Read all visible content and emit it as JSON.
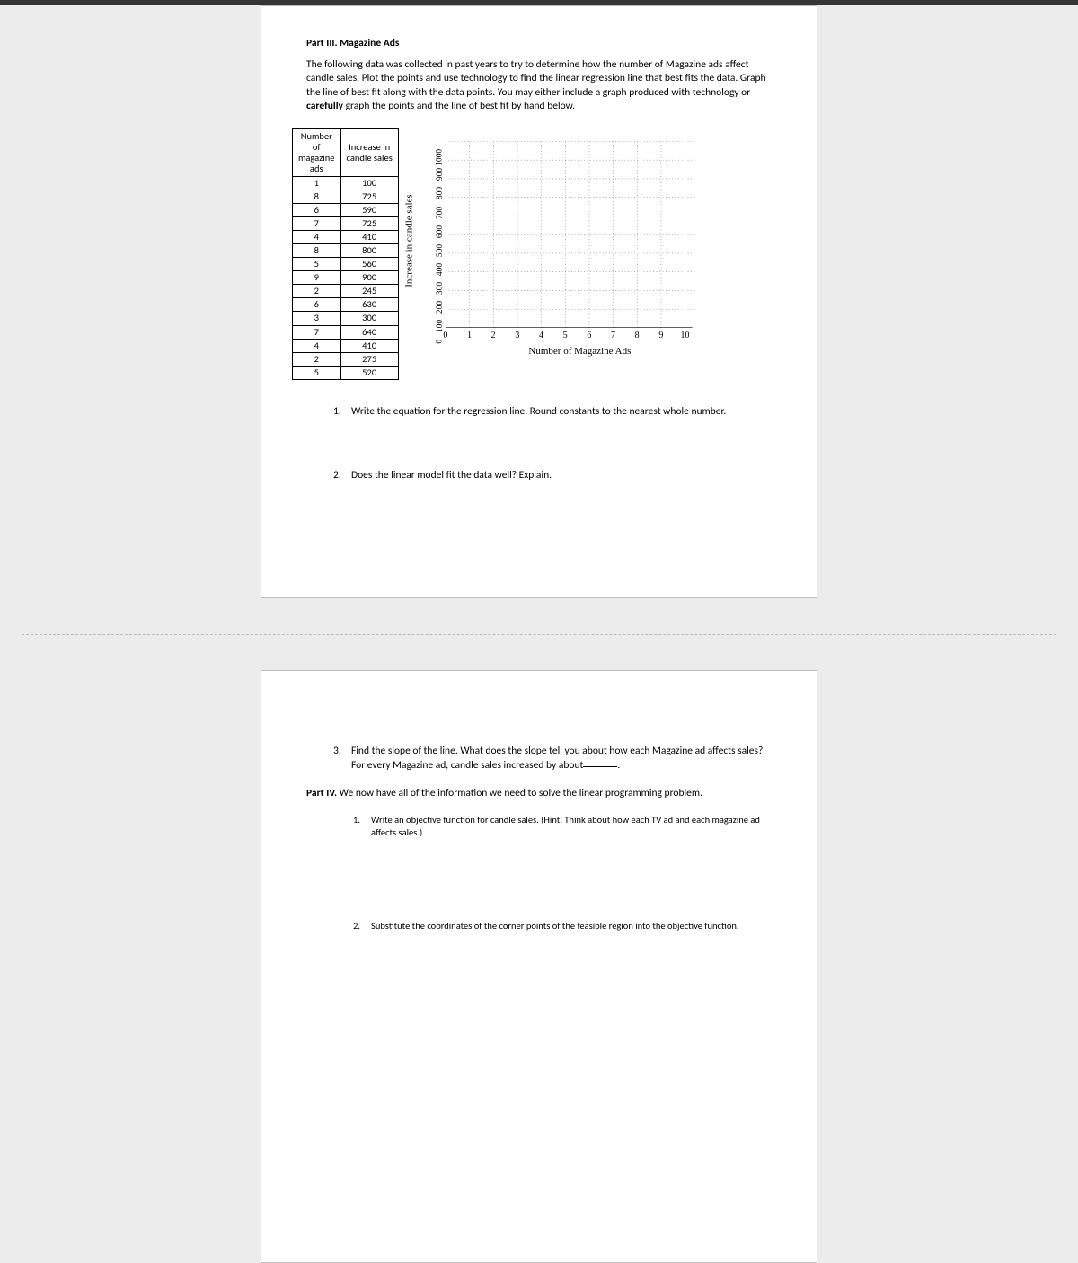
{
  "page1": {
    "part_title": "Part III.   Magazine Ads",
    "intro_text": "The following data was collected in past years to try to determine how the number of Magazine ads affect candle sales.  Plot the points and use technology to find the linear regression line that best fits the data.  Graph the line of best fit along with the data points.  You may either include a graph produced with technology or ",
    "intro_bold": "carefully",
    "intro_text2": " graph the points and the line of best fit by hand below.",
    "table": {
      "col1_l1": "Number",
      "col1_l2": "of",
      "col1_l3": "magazine",
      "col1_l4": "ads",
      "col2_l1": "Increase in",
      "col2_l2": "candle sales",
      "rows": [
        [
          "1",
          "100"
        ],
        [
          "8",
          "725"
        ],
        [
          "6",
          "590"
        ],
        [
          "7",
          "725"
        ],
        [
          "4",
          "410"
        ],
        [
          "8",
          "800"
        ],
        [
          "5",
          "560"
        ],
        [
          "9",
          "900"
        ],
        [
          "2",
          "245"
        ],
        [
          "6",
          "630"
        ],
        [
          "3",
          "300"
        ],
        [
          "7",
          "640"
        ],
        [
          "4",
          "410"
        ],
        [
          "2",
          "275"
        ],
        [
          "5",
          "520"
        ]
      ]
    },
    "chart": {
      "ylabel": "Increase in candle sales",
      "xlabel": "Number of Magazine Ads",
      "xticks": [
        "0",
        "1",
        "2",
        "3",
        "4",
        "5",
        "6",
        "7",
        "8",
        "9",
        "10"
      ],
      "yticks": [
        "0",
        "100",
        "200",
        "300",
        "400",
        "500",
        "600",
        "700",
        "800",
        "900",
        "1000"
      ],
      "xmin": 0,
      "xmax": 10.5,
      "ymin": 0,
      "ymax": 1050,
      "grid_color": "#808080",
      "axis_color": "#000000"
    },
    "q1_num": "1.",
    "q1": "Write the equation for the regression line.  Round constants to the nearest whole number.",
    "q2_num": "2.",
    "q2": "Does the linear model fit the data well?  Explain."
  },
  "page2": {
    "q3_num": "3.",
    "q3a": "Find the slope of the line.  What does the slope tell you about how each Magazine ad affects sales?  For every Magazine ad, candle sales increased by about",
    "q3b": ".",
    "part4_label": "Part IV.",
    "part4_text": "   We now have all of the information we need to solve the linear programming problem.",
    "s1_num": "1.",
    "s1": "Write an objective function for candle sales.  (Hint: Think about how each TV ad and each magazine ad affects sales.)",
    "s2_num": "2.",
    "s2": "Substitute the coordinates of the corner points of the feasible region into the objective function."
  }
}
